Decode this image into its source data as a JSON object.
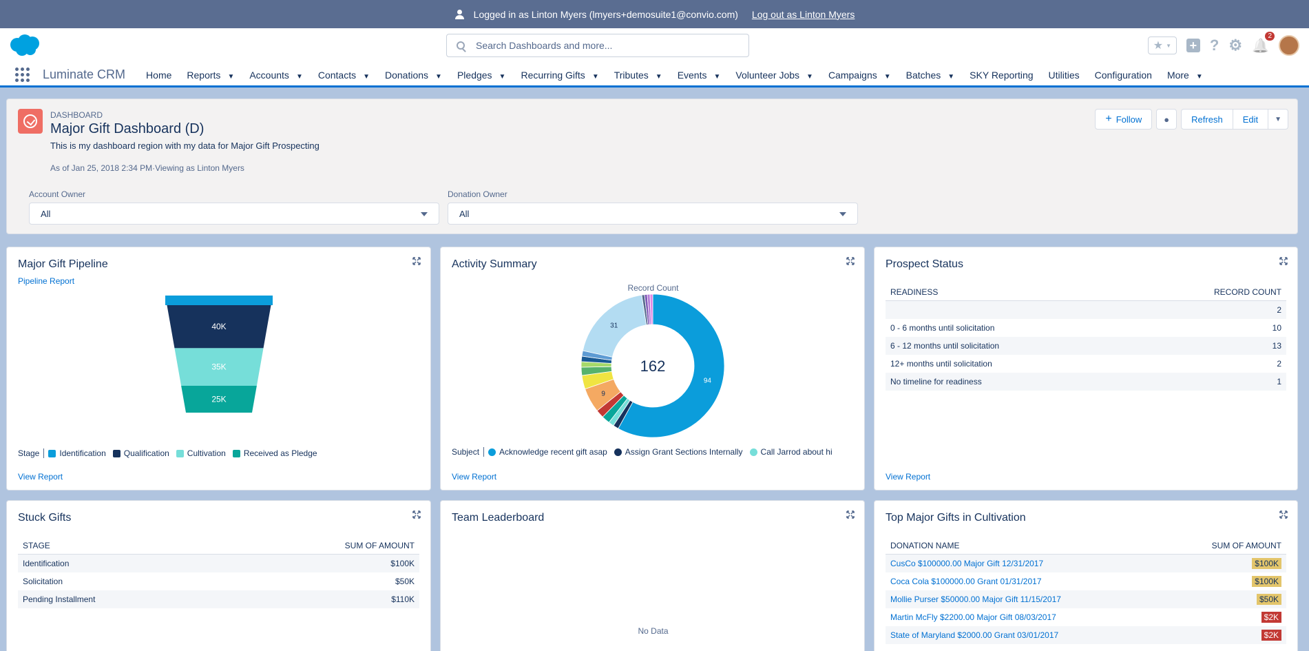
{
  "topbar": {
    "logged_in": "Logged in as Linton Myers (lmyers+demosuite1@convio.com)",
    "logout": "Log out as Linton Myers"
  },
  "header": {
    "search_placeholder": "Search Dashboards and more...",
    "notification_count": "2",
    "help_icon": "?",
    "gear_icon": "⚙",
    "bell_icon": "🔔",
    "star_icon": "★",
    "plus_icon": "+"
  },
  "nav": {
    "app_name": "Luminate CRM",
    "items": [
      {
        "label": "Home",
        "dropdown": false
      },
      {
        "label": "Reports",
        "dropdown": true
      },
      {
        "label": "Accounts",
        "dropdown": true
      },
      {
        "label": "Contacts",
        "dropdown": true
      },
      {
        "label": "Donations",
        "dropdown": true
      },
      {
        "label": "Pledges",
        "dropdown": true
      },
      {
        "label": "Recurring Gifts",
        "dropdown": true
      },
      {
        "label": "Tributes",
        "dropdown": true
      },
      {
        "label": "Events",
        "dropdown": true
      },
      {
        "label": "Volunteer Jobs",
        "dropdown": true
      },
      {
        "label": "Campaigns",
        "dropdown": true
      },
      {
        "label": "Batches",
        "dropdown": true
      },
      {
        "label": "SKY Reporting",
        "dropdown": false
      },
      {
        "label": "Utilities",
        "dropdown": false
      },
      {
        "label": "Configuration",
        "dropdown": false
      },
      {
        "label": "More",
        "dropdown": true
      }
    ]
  },
  "dashboard": {
    "eyebrow": "DASHBOARD",
    "title": "Major Gift Dashboard (D)",
    "description": "This is my dashboard region with my data for Major Gift Prospecting",
    "as_of": "As of Jan 25, 2018 2:34 PM·Viewing as Linton Myers",
    "buttons": {
      "follow": "Follow",
      "refresh": "Refresh",
      "edit": "Edit"
    },
    "filters": [
      {
        "label": "Account Owner",
        "value": "All"
      },
      {
        "label": "Donation Owner",
        "value": "All"
      }
    ]
  },
  "colors": {
    "brand_blue": "#0070d2",
    "header_bar": "#5a6d91",
    "dashboard_icon": "#ef6e64"
  },
  "cards": {
    "pipeline": {
      "title": "Major Gift Pipeline",
      "subtitle": "Pipeline Report",
      "legend_title": "Stage",
      "view_report": "View Report"
    },
    "activity": {
      "title": "Activity Summary",
      "subtitle": "Record Count",
      "center_total": "162",
      "legend_title": "Subject",
      "view_report": "View Report"
    },
    "prospect": {
      "title": "Prospect Status",
      "col1": "READINESS",
      "col2": "RECORD COUNT",
      "rows": [
        {
          "name": "",
          "value": "2"
        },
        {
          "name": "0 - 6 months until solicitation",
          "value": "10"
        },
        {
          "name": "6 - 12 months until solicitation",
          "value": "13"
        },
        {
          "name": "12+ months until solicitation",
          "value": "2"
        },
        {
          "name": "No timeline for readiness",
          "value": "1"
        }
      ],
      "view_report": "View Report"
    },
    "stuck": {
      "title": "Stuck Gifts",
      "col1": "STAGE",
      "col2": "SUM OF AMOUNT",
      "rows": [
        {
          "name": "Identification",
          "value": "$100K"
        },
        {
          "name": "Solicitation",
          "value": "$50K"
        },
        {
          "name": "Pending Installment",
          "value": "$110K"
        }
      ]
    },
    "leaderboard": {
      "title": "Team Leaderboard",
      "empty": "No Data"
    },
    "top": {
      "title": "Top Major Gifts in Cultivation",
      "col1": "DONATION NAME",
      "col2": "SUM OF AMOUNT",
      "rows": [
        {
          "name": "CusCo $100000.00 Major Gift 12/31/2017",
          "value": "$100K",
          "color": "#e3c56b"
        },
        {
          "name": "Coca Cola $100000.00 Grant 01/31/2017",
          "value": "$100K",
          "color": "#e3c56b"
        },
        {
          "name": "Mollie Purser $50000.00 Major Gift 11/15/2017",
          "value": "$50K",
          "color": "#e3c56b"
        },
        {
          "name": "Martin McFly $2200.00 Major Gift 08/03/2017",
          "value": "$2K",
          "color": "#c23934"
        },
        {
          "name": "State of Maryland $2000.00 Grant 03/01/2017",
          "value": "$2K",
          "color": "#c23934"
        }
      ]
    }
  },
  "chart_data": [
    {
      "type": "funnel",
      "title": "Major Gift Pipeline",
      "legend_title": "Stage",
      "categories": [
        "Identification",
        "Qualification",
        "Cultivation",
        "Received as Pledge"
      ],
      "values": [
        5,
        40,
        35,
        25
      ],
      "labels": [
        "",
        "40K",
        "35K",
        "25K"
      ],
      "colors": [
        "#0b9ddb",
        "#16325c",
        "#76ded9",
        "#08a69a"
      ]
    },
    {
      "type": "donut",
      "title": "Activity Summary",
      "subtitle": "Record Count",
      "total": 162,
      "legend_title": "Subject",
      "legend": [
        "Acknowledge recent gift asap",
        "Assign Grant Sections Internally",
        "Call Jarrod about hi"
      ],
      "values": [
        94,
        2,
        2,
        3,
        3,
        9,
        5,
        3,
        2,
        2,
        2,
        31,
        1,
        1,
        1,
        1
      ],
      "labels": [
        "94",
        "",
        "",
        "",
        "",
        "9",
        "",
        "",
        "",
        "",
        "",
        "31",
        "",
        "",
        "",
        ""
      ],
      "colors": [
        "#0b9ddb",
        "#16325c",
        "#76ded9",
        "#08a69a",
        "#c23934",
        "#f4a962",
        "#f0e442",
        "#57b26c",
        "#a6d96a",
        "#195a94",
        "#5d9bd3",
        "#b3dcf2",
        "#54698d",
        "#7f5ab6",
        "#b37ad8",
        "#e287e4"
      ]
    }
  ]
}
